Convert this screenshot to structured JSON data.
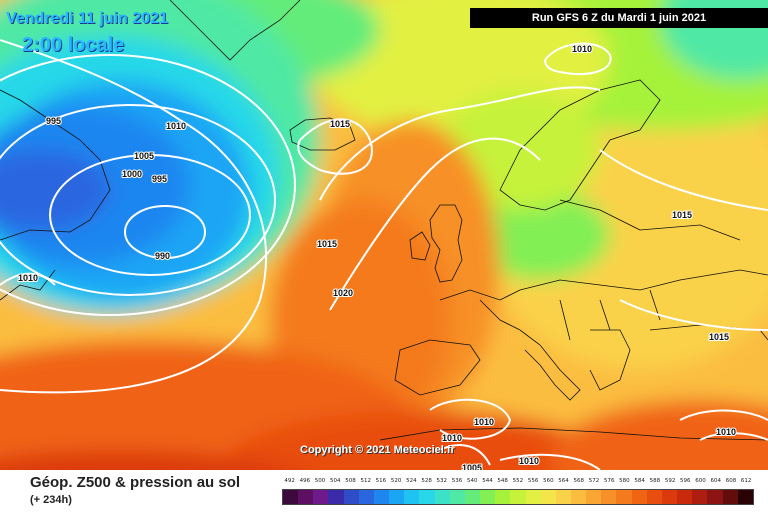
{
  "header": {
    "date": "Vendredi 11 juin 2021",
    "local_time": "2:00 locale",
    "run": "Run GFS 6 Z du Mardi 1 juin 2021"
  },
  "copyright": "Copyright © 2021 Meteociel.fr",
  "footer": {
    "product": "Géop. Z500 & pression au sol",
    "lead_time": "(+ 234h)"
  },
  "isobar_labels": [
    "995",
    "1010",
    "1005",
    "1000",
    "995",
    "990",
    "1015",
    "1015",
    "1020",
    "1010",
    "1010",
    "1015",
    "1015",
    "1010",
    "1010",
    "1010",
    "1005",
    "1010"
  ],
  "legend": {
    "values": [
      "492",
      "496",
      "500",
      "504",
      "508",
      "512",
      "516",
      "520",
      "524",
      "528",
      "532",
      "536",
      "540",
      "544",
      "548",
      "552",
      "556",
      "560",
      "564",
      "568",
      "572",
      "576",
      "580",
      "584",
      "588",
      "592",
      "596",
      "600",
      "604",
      "608",
      "612"
    ],
    "colors": [
      "#3d0a3d",
      "#5c0f63",
      "#6f1a8c",
      "#3b2ba8",
      "#2f4cc9",
      "#2a66e0",
      "#1f86f0",
      "#1ba5f5",
      "#20c2f2",
      "#28d8e8",
      "#3be2c8",
      "#4fe8a4",
      "#63ec7a",
      "#82ef55",
      "#a6f23b",
      "#c6f23a",
      "#e2f043",
      "#f4e64a",
      "#fad24a",
      "#fbbd3f",
      "#f9a634",
      "#f79028",
      "#f47a1e",
      "#f06414",
      "#e84e0e",
      "#dc3a0c",
      "#c92a0c",
      "#ad1e10",
      "#8c1412",
      "#620c0c",
      "#2a0404"
    ]
  }
}
